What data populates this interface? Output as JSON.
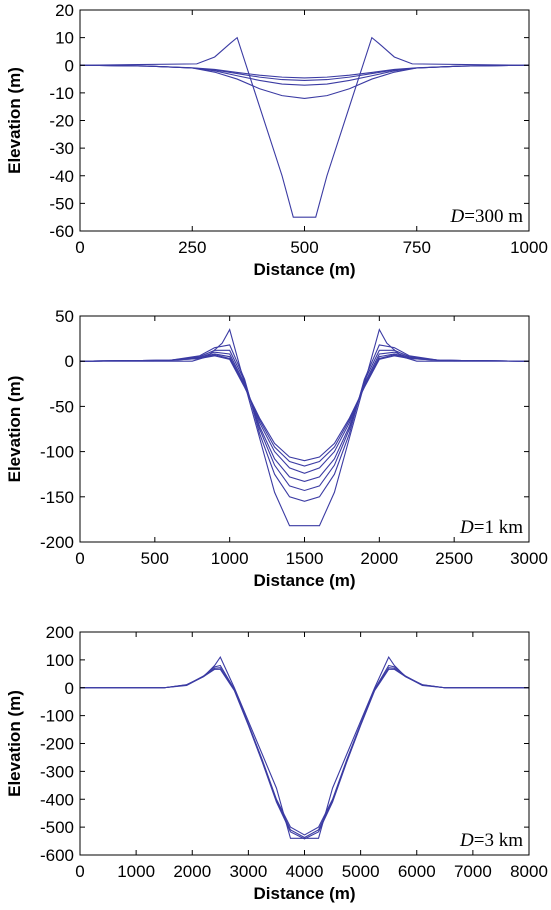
{
  "chart_data": [
    {
      "type": "line",
      "xlabel": "Distance (m)",
      "ylabel": "Elevation (m)",
      "xlim": [
        0,
        1000
      ],
      "ylim": [
        -60,
        20
      ],
      "xticks": [
        0,
        250,
        500,
        750,
        1000
      ],
      "yticks": [
        20,
        10,
        0,
        -10,
        -20,
        -30,
        -40,
        -50,
        -60
      ],
      "annotation": {
        "italic": "D",
        "rest": "=300 m"
      },
      "line_color": "#3b3ba3",
      "series": [
        {
          "x": [
            0,
            260,
            300,
            335,
            350,
            400,
            450,
            475,
            525,
            550,
            600,
            650,
            665,
            700,
            740,
            1000
          ],
          "y": [
            0,
            0.5,
            3,
            8,
            10,
            -15,
            -40,
            -55,
            -55,
            -40,
            -15,
            10,
            8,
            3,
            0.5,
            0
          ]
        },
        {
          "x": [
            0,
            150,
            250,
            300,
            350,
            400,
            450,
            500,
            550,
            600,
            650,
            700,
            750,
            850,
            1000
          ],
          "y": [
            0,
            -0.3,
            -1,
            -2.5,
            -5,
            -8.5,
            -11,
            -12,
            -11,
            -8.5,
            -5,
            -2.5,
            -1,
            -0.3,
            0
          ]
        },
        {
          "x": [
            0,
            150,
            250,
            300,
            350,
            400,
            450,
            500,
            550,
            600,
            650,
            700,
            750,
            850,
            1000
          ],
          "y": [
            0,
            -0.3,
            -1,
            -2,
            -3.8,
            -5.5,
            -6.8,
            -7.2,
            -6.8,
            -5.5,
            -3.8,
            -2,
            -1,
            -0.3,
            0
          ]
        },
        {
          "x": [
            0,
            150,
            250,
            300,
            350,
            400,
            450,
            500,
            550,
            600,
            650,
            700,
            750,
            850,
            1000
          ],
          "y": [
            0,
            -0.3,
            -1,
            -1.7,
            -3,
            -4.3,
            -5.2,
            -5.5,
            -5.2,
            -4.3,
            -3,
            -1.7,
            -1,
            -0.3,
            0
          ]
        },
        {
          "x": [
            0,
            150,
            250,
            300,
            350,
            400,
            450,
            500,
            550,
            600,
            650,
            700,
            750,
            850,
            1000
          ],
          "y": [
            0,
            -0.3,
            -0.9,
            -1.5,
            -2.6,
            -3.6,
            -4.3,
            -4.6,
            -4.3,
            -3.6,
            -2.6,
            -1.5,
            -0.9,
            -0.3,
            0
          ]
        }
      ]
    },
    {
      "type": "line",
      "xlabel": "Distance (m)",
      "ylabel": "Elevation (m)",
      "xlim": [
        0,
        3000
      ],
      "ylim": [
        -200,
        50
      ],
      "xticks": [
        0,
        500,
        1000,
        1500,
        2000,
        2500,
        3000
      ],
      "yticks": [
        50,
        0,
        -50,
        -100,
        -150,
        -200
      ],
      "annotation": {
        "italic": "D",
        "rest": "=1 km"
      },
      "line_color": "#3b3ba3",
      "series": [
        {
          "x": [
            0,
            750,
            850,
            950,
            1000,
            1100,
            1200,
            1300,
            1400,
            1600,
            1700,
            1800,
            1900,
            2000,
            2050,
            2150,
            2250,
            3000
          ],
          "y": [
            0,
            0,
            5,
            20,
            35,
            -25,
            -85,
            -145,
            -182,
            -182,
            -145,
            -85,
            -25,
            35,
            20,
            5,
            0,
            0
          ]
        },
        {
          "x": [
            0,
            600,
            800,
            900,
            1000,
            1100,
            1200,
            1300,
            1400,
            1500,
            1600,
            1700,
            1800,
            1900,
            2000,
            2100,
            2200,
            2400,
            3000
          ],
          "y": [
            0,
            1,
            6,
            15,
            18,
            -20,
            -80,
            -125,
            -150,
            -155,
            -150,
            -125,
            -80,
            -20,
            18,
            15,
            6,
            1,
            0
          ]
        },
        {
          "x": [
            0,
            600,
            800,
            900,
            1000,
            1100,
            1200,
            1300,
            1400,
            1500,
            1600,
            1700,
            1800,
            1900,
            2000,
            2100,
            2200,
            2400,
            3000
          ],
          "y": [
            0,
            1,
            5,
            12,
            12,
            -22,
            -75,
            -115,
            -138,
            -143,
            -138,
            -115,
            -75,
            -22,
            12,
            12,
            5,
            1,
            0
          ]
        },
        {
          "x": [
            0,
            600,
            800,
            900,
            1000,
            1100,
            1200,
            1300,
            1400,
            1500,
            1600,
            1700,
            1800,
            1900,
            2000,
            2100,
            2200,
            2400,
            3000
          ],
          "y": [
            0,
            1,
            4,
            10,
            8,
            -25,
            -72,
            -108,
            -128,
            -133,
            -128,
            -108,
            -72,
            -25,
            8,
            10,
            4,
            1,
            0
          ]
        },
        {
          "x": [
            0,
            600,
            800,
            900,
            1000,
            1100,
            1200,
            1300,
            1400,
            1500,
            1600,
            1700,
            1800,
            1900,
            2000,
            2100,
            2200,
            2400,
            3000
          ],
          "y": [
            0,
            1,
            4,
            8,
            5,
            -27,
            -68,
            -100,
            -118,
            -124,
            -118,
            -100,
            -68,
            -27,
            5,
            8,
            4,
            1,
            0
          ]
        },
        {
          "x": [
            0,
            600,
            800,
            900,
            1000,
            1100,
            1200,
            1300,
            1400,
            1500,
            1600,
            1700,
            1800,
            1900,
            2000,
            2100,
            2200,
            2400,
            3000
          ],
          "y": [
            0,
            1,
            3,
            7,
            3,
            -28,
            -65,
            -95,
            -111,
            -116,
            -111,
            -95,
            -65,
            -28,
            3,
            7,
            3,
            1,
            0
          ]
        },
        {
          "x": [
            0,
            600,
            800,
            900,
            1000,
            1100,
            1200,
            1300,
            1400,
            1500,
            1600,
            1700,
            1800,
            1900,
            2000,
            2100,
            2200,
            2400,
            3000
          ],
          "y": [
            0,
            1,
            3,
            6,
            2,
            -29,
            -63,
            -91,
            -106,
            -110,
            -106,
            -91,
            -63,
            -29,
            2,
            6,
            3,
            1,
            0
          ]
        }
      ]
    },
    {
      "type": "line",
      "xlabel": "Distance (m)",
      "ylabel": "Elevation (m)",
      "xlim": [
        0,
        8000
      ],
      "ylim": [
        -600,
        200
      ],
      "xticks": [
        0,
        1000,
        2000,
        3000,
        4000,
        5000,
        6000,
        7000,
        8000
      ],
      "yticks": [
        200,
        100,
        0,
        -100,
        -200,
        -300,
        -400,
        -500,
        -600
      ],
      "annotation": {
        "italic": "D",
        "rest": "=3 km"
      },
      "line_color": "#3b3ba3",
      "series": [
        {
          "x": [
            0,
            1500,
            1900,
            2200,
            2400,
            2500,
            2750,
            3000,
            3250,
            3500,
            3750,
            4250,
            4500,
            4750,
            5000,
            5250,
            5500,
            5600,
            5800,
            6100,
            6500,
            8000
          ],
          "y": [
            0,
            0,
            8,
            40,
            80,
            110,
            0,
            -120,
            -240,
            -360,
            -540,
            -540,
            -360,
            -240,
            -120,
            0,
            110,
            80,
            40,
            8,
            0,
            0
          ]
        },
        {
          "x": [
            0,
            1500,
            1900,
            2200,
            2400,
            2500,
            2750,
            3000,
            3250,
            3500,
            3750,
            4000,
            4250,
            4500,
            4750,
            5000,
            5250,
            5500,
            5600,
            5800,
            6100,
            6500,
            8000
          ],
          "y": [
            0,
            0,
            10,
            42,
            75,
            80,
            -5,
            -130,
            -260,
            -400,
            -500,
            -528,
            -500,
            -400,
            -260,
            -130,
            -5,
            80,
            75,
            42,
            10,
            0,
            0
          ]
        },
        {
          "x": [
            0,
            1500,
            1900,
            2200,
            2400,
            2500,
            2750,
            3000,
            3250,
            3500,
            3750,
            4000,
            4250,
            4500,
            4750,
            5000,
            5250,
            5500,
            5600,
            5800,
            6100,
            6500,
            8000
          ],
          "y": [
            0,
            0,
            10,
            40,
            70,
            72,
            -8,
            -133,
            -265,
            -405,
            -510,
            -537,
            -510,
            -405,
            -265,
            -133,
            -8,
            72,
            70,
            40,
            10,
            0,
            0
          ]
        },
        {
          "x": [
            0,
            1500,
            1900,
            2200,
            2400,
            2500,
            2750,
            3000,
            3250,
            3500,
            3750,
            4000,
            4250,
            4500,
            4750,
            5000,
            5250,
            5500,
            5600,
            5800,
            6100,
            6500,
            8000
          ],
          "y": [
            0,
            0,
            11,
            40,
            66,
            66,
            -10,
            -135,
            -268,
            -410,
            -517,
            -542,
            -517,
            -410,
            -268,
            -135,
            -10,
            66,
            66,
            40,
            11,
            0,
            0
          ]
        }
      ]
    }
  ]
}
